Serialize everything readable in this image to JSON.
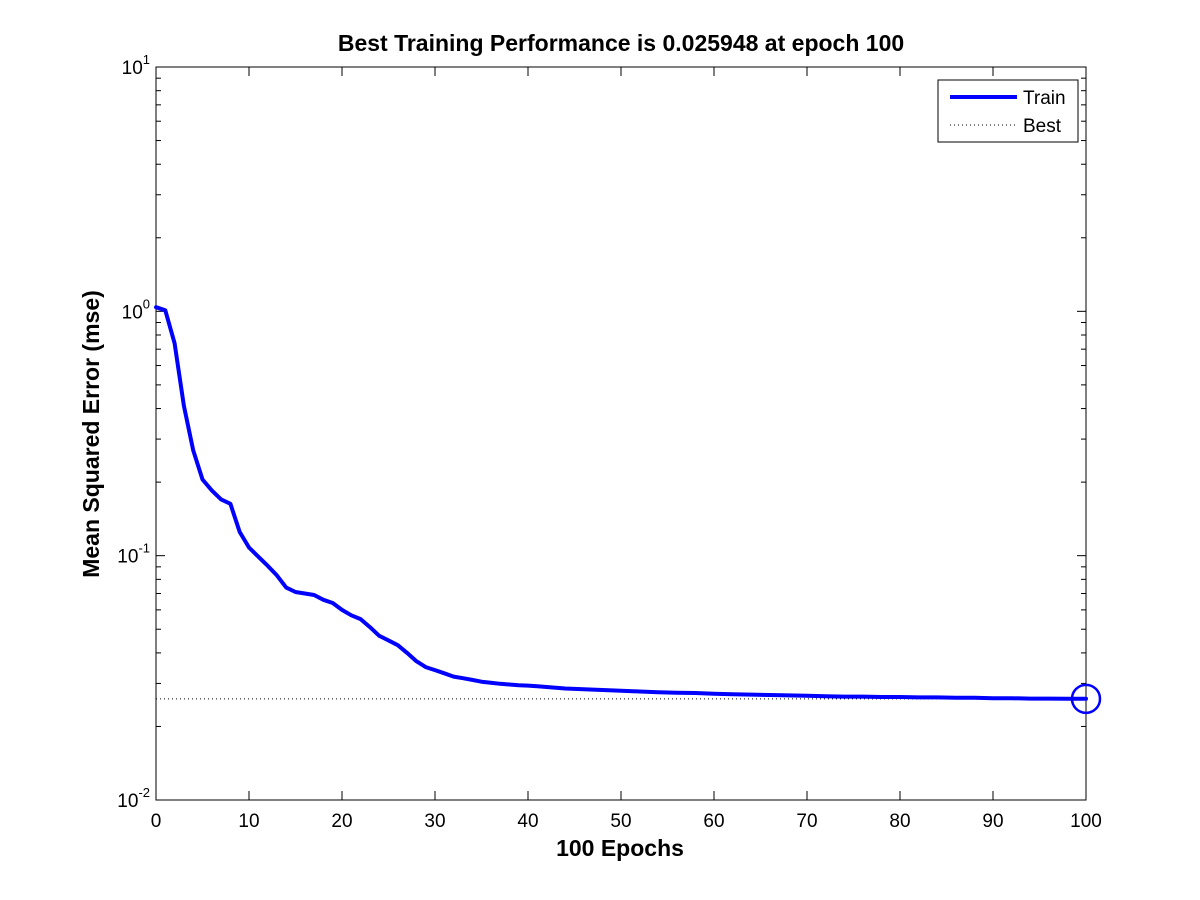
{
  "chart_data": {
    "type": "line",
    "title": "Best Training Performance is 0.025948 at epoch 100",
    "xlabel": "100 Epochs",
    "ylabel": "Mean Squared Error  (mse)",
    "xlim": [
      0,
      100
    ],
    "ylim": [
      0.01,
      10
    ],
    "yscale": "log",
    "x_ticks": [
      0,
      10,
      20,
      30,
      40,
      50,
      60,
      70,
      80,
      90,
      100
    ],
    "y_ticks": [
      {
        "base": "10",
        "exp": "-2",
        "value": 0.01
      },
      {
        "base": "10",
        "exp": "-1",
        "value": 0.1
      },
      {
        "base": "10",
        "exp": "0",
        "value": 1
      },
      {
        "base": "10",
        "exp": "1",
        "value": 10
      }
    ],
    "grid": false,
    "legend": {
      "position": "top-right",
      "entries": [
        {
          "label": "Train",
          "style": "solid",
          "color": "#0000ff"
        },
        {
          "label": "Best",
          "style": "dotted",
          "color": "#000000"
        }
      ]
    },
    "series": [
      {
        "name": "Train",
        "color": "#0000ff",
        "x": [
          0,
          1,
          2,
          3,
          4,
          5,
          6,
          7,
          8,
          9,
          10,
          11,
          12,
          13,
          14,
          15,
          16,
          17,
          18,
          19,
          20,
          21,
          22,
          23,
          24,
          25,
          26,
          27,
          28,
          29,
          30,
          31,
          32,
          33,
          34,
          35,
          36,
          37,
          38,
          39,
          40,
          41,
          42,
          43,
          44,
          45,
          46,
          47,
          48,
          49,
          50,
          52,
          54,
          56,
          58,
          60,
          62,
          64,
          66,
          68,
          70,
          72,
          74,
          76,
          78,
          80,
          82,
          84,
          86,
          88,
          90,
          92,
          94,
          96,
          98,
          100
        ],
        "y": [
          1.04,
          1.01,
          0.74,
          0.41,
          0.27,
          0.205,
          0.185,
          0.17,
          0.163,
          0.125,
          0.108,
          0.099,
          0.091,
          0.083,
          0.074,
          0.071,
          0.07,
          0.069,
          0.066,
          0.064,
          0.06,
          0.057,
          0.055,
          0.051,
          0.047,
          0.045,
          0.043,
          0.04,
          0.037,
          0.035,
          0.034,
          0.033,
          0.032,
          0.0315,
          0.031,
          0.0305,
          0.0302,
          0.0299,
          0.0297,
          0.0295,
          0.0294,
          0.0292,
          0.029,
          0.0288,
          0.0286,
          0.0285,
          0.0284,
          0.0283,
          0.0282,
          0.0281,
          0.028,
          0.0278,
          0.0276,
          0.0275,
          0.0274,
          0.0272,
          0.0271,
          0.027,
          0.0269,
          0.0268,
          0.0267,
          0.0266,
          0.0265,
          0.0265,
          0.0264,
          0.0264,
          0.0263,
          0.0263,
          0.0262,
          0.0262,
          0.0261,
          0.0261,
          0.026,
          0.026,
          0.02597,
          0.025948
        ]
      }
    ],
    "best": {
      "epoch": 100,
      "value": 0.025948,
      "color": "#0000ff"
    }
  }
}
